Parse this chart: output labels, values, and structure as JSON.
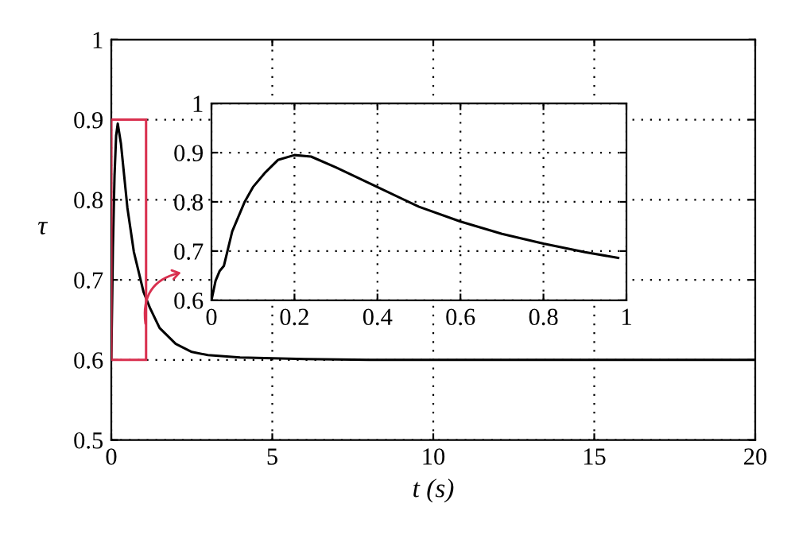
{
  "chart_data": [
    {
      "type": "line",
      "xlabel": "t (s)",
      "ylabel": "τ",
      "xlim": [
        0,
        20
      ],
      "ylim": [
        0.5,
        1
      ],
      "xticks": [
        0,
        5,
        10,
        15,
        20
      ],
      "yticks": [
        0.5,
        0.6,
        0.7,
        0.8,
        0.9,
        1
      ],
      "grid": true,
      "series": [
        {
          "color": "#000000",
          "x": [
            0,
            0.05,
            0.1,
            0.15,
            0.2,
            0.3,
            0.4,
            0.5,
            0.7,
            1,
            1.2,
            1.5,
            2,
            2.5,
            3,
            4,
            5,
            6,
            8,
            10,
            15,
            20
          ],
          "values": [
            0.6,
            0.74,
            0.83,
            0.88,
            0.895,
            0.87,
            0.83,
            0.79,
            0.735,
            0.685,
            0.665,
            0.64,
            0.62,
            0.61,
            0.606,
            0.603,
            0.602,
            0.601,
            0.6,
            0.6,
            0.6,
            0.6
          ]
        }
      ]
    },
    {
      "type": "line",
      "xlim": [
        0,
        1
      ],
      "ylim": [
        0.6,
        1
      ],
      "xticks": [
        0,
        0.2,
        0.4,
        0.6,
        0.8,
        1
      ],
      "yticks": [
        0.6,
        0.7,
        0.8,
        0.9,
        1
      ],
      "grid": true,
      "series": [
        {
          "color": "#000000",
          "x": [
            0,
            0.01,
            0.02,
            0.03,
            0.05,
            0.08,
            0.1,
            0.13,
            0.16,
            0.2,
            0.24,
            0.3,
            0.4,
            0.5,
            0.6,
            0.7,
            0.8,
            0.9,
            0.98
          ],
          "values": [
            0.6,
            0.64,
            0.66,
            0.67,
            0.74,
            0.8,
            0.83,
            0.86,
            0.885,
            0.895,
            0.892,
            0.87,
            0.83,
            0.79,
            0.76,
            0.735,
            0.715,
            0.698,
            0.686
          ]
        }
      ]
    }
  ]
}
